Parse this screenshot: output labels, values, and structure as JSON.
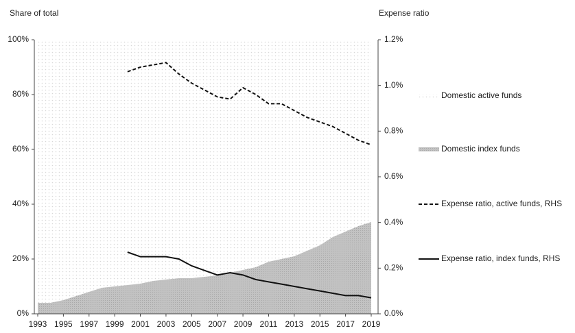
{
  "chart_data": {
    "type": "stacked_area_line",
    "y_label": "Share of total",
    "y2_label": "Expense ratio",
    "x": [
      1993,
      1994,
      1995,
      1996,
      1997,
      1998,
      1999,
      2000,
      2001,
      2002,
      2003,
      2004,
      2005,
      2006,
      2007,
      2008,
      2009,
      2010,
      2011,
      2012,
      2013,
      2014,
      2015,
      2016,
      2017,
      2018,
      2019
    ],
    "xlim": [
      1993,
      2019
    ],
    "xticks": [
      1993,
      1995,
      1997,
      1999,
      2001,
      2003,
      2005,
      2007,
      2009,
      2011,
      2013,
      2015,
      2017,
      2019
    ],
    "ylim": [
      0,
      100
    ],
    "yticks": [
      {
        "value": 0,
        "label": "0%"
      },
      {
        "value": 20,
        "label": "20%"
      },
      {
        "value": 40,
        "label": "40%"
      },
      {
        "value": 60,
        "label": "60%"
      },
      {
        "value": 80,
        "label": "80%"
      },
      {
        "value": 100,
        "label": "100%"
      }
    ],
    "y2lim": [
      0,
      1.2
    ],
    "y2ticks": [
      {
        "value": 0,
        "label": "0.0%"
      },
      {
        "value": 0.2,
        "label": "0.2%"
      },
      {
        "value": 0.4,
        "label": "0.4%"
      },
      {
        "value": 0.6,
        "label": "0.6%"
      },
      {
        "value": 0.8,
        "label": "0.8%"
      },
      {
        "value": 1.0,
        "label": "1.0%"
      },
      {
        "value": 1.2,
        "label": "1.2%"
      }
    ],
    "legend": "right",
    "series": [
      {
        "name": "Domestic active funds",
        "kind": "area",
        "color": "#e6e6e6",
        "values": [
          96,
          96,
          95,
          93.5,
          92,
          90.5,
          90,
          89.5,
          89,
          88,
          87.5,
          87,
          87,
          86.5,
          86,
          85,
          84,
          83,
          81,
          80,
          79,
          77,
          75,
          72,
          70,
          68,
          66.5
        ]
      },
      {
        "name": "Domestic index funds",
        "kind": "area",
        "color": "#bdbdbd",
        "values": [
          4,
          4,
          5,
          6.5,
          8,
          9.5,
          10,
          10.5,
          11,
          12,
          12.5,
          13,
          13,
          13.5,
          14,
          15,
          16,
          17,
          19,
          20,
          21,
          23,
          25,
          28,
          30,
          32,
          33.5
        ]
      },
      {
        "name": "Expense ratio, active funds, RHS",
        "kind": "dashed",
        "color": "#111111",
        "axis": "y2",
        "values": [
          null,
          null,
          null,
          null,
          null,
          null,
          null,
          1.06,
          1.08,
          1.09,
          1.1,
          1.05,
          1.01,
          0.98,
          0.95,
          0.94,
          0.99,
          0.96,
          0.92,
          0.92,
          0.89,
          0.86,
          0.84,
          0.82,
          0.79,
          0.76,
          0.74
        ]
      },
      {
        "name": "Expense ratio, index funds, RHS",
        "kind": "solid",
        "color": "#111111",
        "axis": "y2",
        "values": [
          null,
          null,
          null,
          null,
          null,
          null,
          null,
          0.27,
          0.25,
          0.25,
          0.25,
          0.24,
          0.21,
          0.19,
          0.17,
          0.18,
          0.17,
          0.15,
          0.14,
          0.13,
          0.12,
          0.11,
          0.1,
          0.09,
          0.08,
          0.08,
          0.07
        ]
      }
    ]
  }
}
